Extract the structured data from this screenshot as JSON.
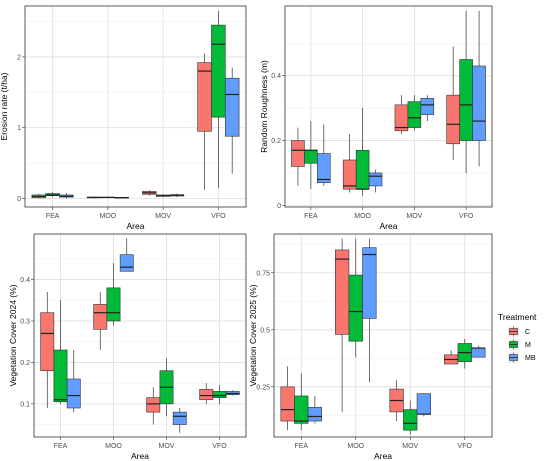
{
  "legend": {
    "title": "Treatment",
    "items": [
      {
        "label": "C",
        "color": "#F8766D"
      },
      {
        "label": "M",
        "color": "#00BA38"
      },
      {
        "label": "MB",
        "color": "#619CFF"
      }
    ]
  },
  "chart_data": [
    {
      "type": "boxplot",
      "xlabel": "Area",
      "ylabel": "Erosion rate (t/ha)",
      "categories": [
        "FEA",
        "MOO",
        "MOV",
        "VFO"
      ],
      "ylim": [
        -0.12,
        2.72
      ],
      "yticks": [
        0,
        1,
        2
      ],
      "grid": true,
      "series": [
        {
          "name": "C",
          "color": "#F8766D",
          "boxes": [
            {
              "min": 0.0,
              "q1": 0.01,
              "median": 0.03,
              "q3": 0.05,
              "max": 0.07
            },
            {
              "min": 0.0,
              "q1": 0.01,
              "median": 0.015,
              "q3": 0.02,
              "max": 0.03
            },
            {
              "min": 0.04,
              "q1": 0.06,
              "median": 0.08,
              "q3": 0.1,
              "max": 0.12
            },
            {
              "min": 0.12,
              "q1": 0.95,
              "median": 1.8,
              "q3": 1.92,
              "max": 2.05
            }
          ]
        },
        {
          "name": "M",
          "color": "#00BA38",
          "boxes": [
            {
              "min": 0.02,
              "q1": 0.04,
              "median": 0.05,
              "q3": 0.07,
              "max": 0.09
            },
            {
              "min": 0.01,
              "q1": 0.012,
              "median": 0.015,
              "q3": 0.02,
              "max": 0.025
            },
            {
              "min": 0.02,
              "q1": 0.03,
              "median": 0.04,
              "q3": 0.05,
              "max": 0.06
            },
            {
              "min": 0.15,
              "q1": 1.15,
              "median": 2.18,
              "q3": 2.45,
              "max": 2.65
            }
          ]
        },
        {
          "name": "MB",
          "color": "#619CFF",
          "boxes": [
            {
              "min": 0.0,
              "q1": 0.02,
              "median": 0.03,
              "q3": 0.05,
              "max": 0.08
            },
            {
              "min": 0.005,
              "q1": 0.01,
              "median": 0.012,
              "q3": 0.015,
              "max": 0.02
            },
            {
              "min": 0.02,
              "q1": 0.035,
              "median": 0.045,
              "q3": 0.055,
              "max": 0.07
            },
            {
              "min": 0.35,
              "q1": 0.88,
              "median": 1.47,
              "q3": 1.7,
              "max": 1.85
            }
          ]
        }
      ]
    },
    {
      "type": "boxplot",
      "xlabel": "Area",
      "ylabel": "Random Roughness (m)",
      "categories": [
        "FEA",
        "MOO",
        "MOV",
        "VFO"
      ],
      "ylim": [
        -0.005,
        0.615
      ],
      "yticks": [
        0.0,
        0.2,
        0.4
      ],
      "grid": true,
      "series": [
        {
          "name": "C",
          "color": "#F8766D",
          "boxes": [
            {
              "min": 0.06,
              "q1": 0.12,
              "median": 0.17,
              "q3": 0.2,
              "max": 0.24
            },
            {
              "min": 0.04,
              "q1": 0.05,
              "median": 0.06,
              "q3": 0.14,
              "max": 0.22
            },
            {
              "min": 0.22,
              "q1": 0.23,
              "median": 0.24,
              "q3": 0.31,
              "max": 0.34
            },
            {
              "min": 0.14,
              "q1": 0.19,
              "median": 0.25,
              "q3": 0.34,
              "max": 0.49
            }
          ]
        },
        {
          "name": "M",
          "color": "#00BA38",
          "boxes": [
            {
              "min": 0.05,
              "q1": 0.13,
              "median": 0.17,
              "q3": 0.17,
              "max": 0.26
            },
            {
              "min": 0.03,
              "q1": 0.05,
              "median": 0.05,
              "q3": 0.17,
              "max": 0.3
            },
            {
              "min": 0.23,
              "q1": 0.24,
              "median": 0.27,
              "q3": 0.32,
              "max": 0.34
            },
            {
              "min": 0.1,
              "q1": 0.2,
              "median": 0.31,
              "q3": 0.45,
              "max": 0.6
            }
          ]
        },
        {
          "name": "MB",
          "color": "#619CFF",
          "boxes": [
            {
              "min": 0.06,
              "q1": 0.07,
              "median": 0.08,
              "q3": 0.16,
              "max": 0.25
            },
            {
              "min": 0.04,
              "q1": 0.06,
              "median": 0.09,
              "q3": 0.1,
              "max": 0.11
            },
            {
              "min": 0.26,
              "q1": 0.28,
              "median": 0.31,
              "q3": 0.33,
              "max": 0.34
            },
            {
              "min": 0.12,
              "q1": 0.2,
              "median": 0.26,
              "q3": 0.43,
              "max": 0.6
            }
          ]
        }
      ]
    },
    {
      "type": "boxplot",
      "xlabel": "Area",
      "ylabel": "Vegetation Cover 2024 (%)",
      "categories": [
        "FEA",
        "MOO",
        "MOV",
        "VFO"
      ],
      "ylim": [
        0.02,
        0.51
      ],
      "yticks": [
        0.1,
        0.2,
        0.3,
        0.4
      ],
      "grid": true,
      "series": [
        {
          "name": "C",
          "color": "#F8766D",
          "boxes": [
            {
              "min": 0.09,
              "q1": 0.18,
              "median": 0.27,
              "q3": 0.32,
              "max": 0.37
            },
            {
              "min": 0.23,
              "q1": 0.28,
              "median": 0.32,
              "q3": 0.34,
              "max": 0.37
            },
            {
              "min": 0.05,
              "q1": 0.08,
              "median": 0.1,
              "q3": 0.115,
              "max": 0.14
            },
            {
              "min": 0.1,
              "q1": 0.11,
              "median": 0.12,
              "q3": 0.135,
              "max": 0.15
            }
          ]
        },
        {
          "name": "M",
          "color": "#00BA38",
          "boxes": [
            {
              "min": 0.1,
              "q1": 0.105,
              "median": 0.11,
              "q3": 0.23,
              "max": 0.35
            },
            {
              "min": 0.29,
              "q1": 0.3,
              "median": 0.32,
              "q3": 0.38,
              "max": 0.44
            },
            {
              "min": 0.07,
              "q1": 0.1,
              "median": 0.14,
              "q3": 0.18,
              "max": 0.21
            },
            {
              "min": 0.1,
              "q1": 0.115,
              "median": 0.12,
              "q3": 0.13,
              "max": 0.145
            }
          ]
        },
        {
          "name": "MB",
          "color": "#619CFF",
          "boxes": [
            {
              "min": 0.08,
              "q1": 0.09,
              "median": 0.12,
              "q3": 0.16,
              "max": 0.23
            },
            {
              "min": 0.42,
              "q1": 0.42,
              "median": 0.43,
              "q3": 0.46,
              "max": 0.5
            },
            {
              "min": 0.03,
              "q1": 0.05,
              "median": 0.07,
              "q3": 0.08,
              "max": 0.09
            },
            {
              "min": 0.12,
              "q1": 0.122,
              "median": 0.125,
              "q3": 0.13,
              "max": 0.133
            }
          ]
        }
      ]
    },
    {
      "type": "boxplot",
      "xlabel": "Area",
      "ylabel": "Vegetation Cover 2025 (%)",
      "categories": [
        "FEA",
        "MOO",
        "MOV",
        "VFO"
      ],
      "ylim": [
        0.03,
        0.92
      ],
      "yticks": [
        0.25,
        0.5,
        0.75
      ],
      "grid": true,
      "series": [
        {
          "name": "C",
          "color": "#F8766D",
          "boxes": [
            {
              "min": 0.06,
              "q1": 0.1,
              "median": 0.15,
              "q3": 0.25,
              "max": 0.34
            },
            {
              "min": 0.14,
              "q1": 0.48,
              "median": 0.81,
              "q3": 0.85,
              "max": 0.9
            },
            {
              "min": 0.1,
              "q1": 0.14,
              "median": 0.19,
              "q3": 0.24,
              "max": 0.28
            },
            {
              "min": 0.35,
              "q1": 0.35,
              "median": 0.37,
              "q3": 0.39,
              "max": 0.41
            }
          ]
        },
        {
          "name": "M",
          "color": "#00BA38",
          "boxes": [
            {
              "min": 0.06,
              "q1": 0.09,
              "median": 0.1,
              "q3": 0.21,
              "max": 0.31
            },
            {
              "min": 0.38,
              "q1": 0.45,
              "median": 0.58,
              "q3": 0.74,
              "max": 0.9
            },
            {
              "min": 0.04,
              "q1": 0.06,
              "median": 0.09,
              "q3": 0.15,
              "max": 0.19
            },
            {
              "min": 0.33,
              "q1": 0.36,
              "median": 0.4,
              "q3": 0.44,
              "max": 0.46
            }
          ]
        },
        {
          "name": "MB",
          "color": "#619CFF",
          "boxes": [
            {
              "min": 0.09,
              "q1": 0.1,
              "median": 0.12,
              "q3": 0.16,
              "max": 0.21
            },
            {
              "min": 0.27,
              "q1": 0.55,
              "median": 0.83,
              "q3": 0.86,
              "max": 0.9
            },
            {
              "min": 0.12,
              "q1": 0.13,
              "median": 0.13,
              "q3": 0.22,
              "max": 0.22
            },
            {
              "min": 0.38,
              "q1": 0.38,
              "median": 0.42,
              "q3": 0.42,
              "max": 0.43
            }
          ]
        }
      ]
    }
  ]
}
